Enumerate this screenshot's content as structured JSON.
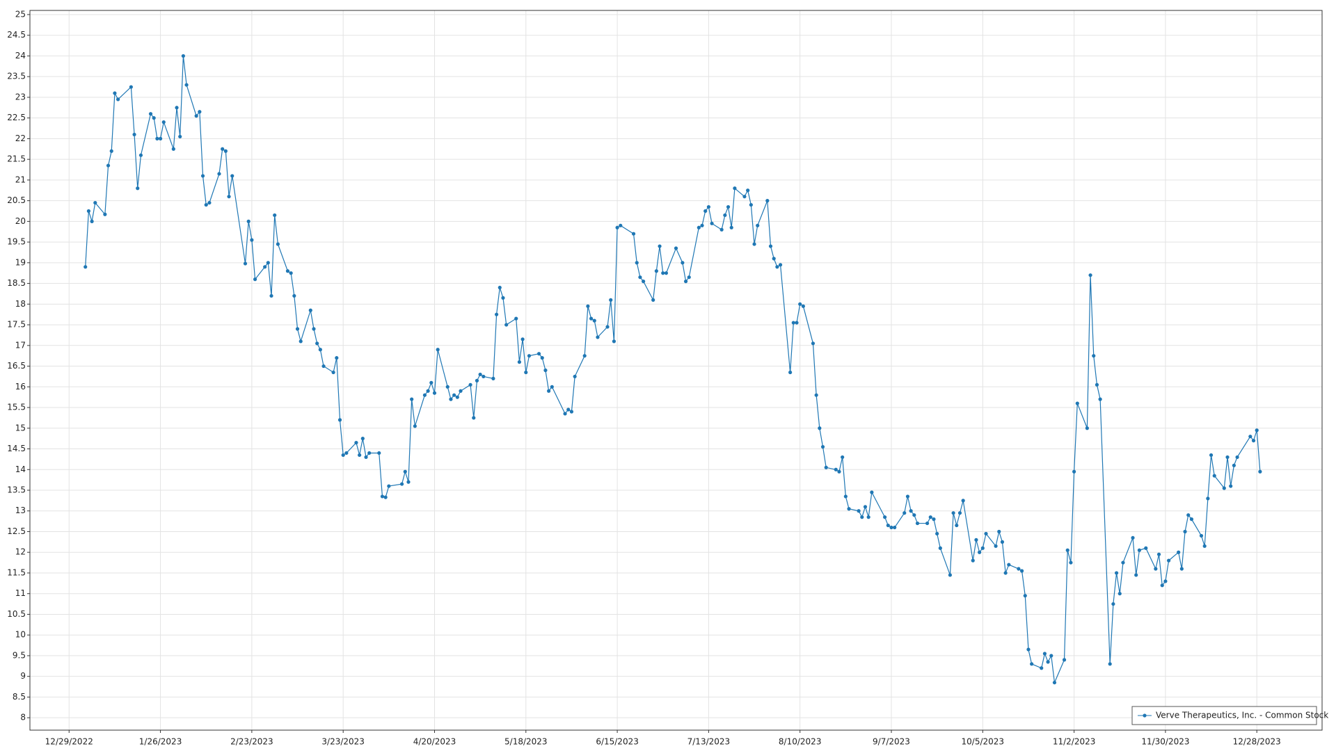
{
  "chart_data": {
    "type": "line",
    "x": [
      "1/3/2023",
      "1/4/2023",
      "1/5/2023",
      "1/6/2023",
      "1/9/2023",
      "1/10/2023",
      "1/11/2023",
      "1/12/2023",
      "1/13/2023",
      "1/17/2023",
      "1/18/2023",
      "1/19/2023",
      "1/20/2023",
      "1/23/2023",
      "1/24/2023",
      "1/25/2023",
      "1/26/2023",
      "1/27/2023",
      "1/30/2023",
      "1/31/2023",
      "2/1/2023",
      "2/2/2023",
      "2/3/2023",
      "2/6/2023",
      "2/7/2023",
      "2/8/2023",
      "2/9/2023",
      "2/10/2023",
      "2/13/2023",
      "2/14/2023",
      "2/15/2023",
      "2/16/2023",
      "2/17/2023",
      "2/21/2023",
      "2/22/2023",
      "2/23/2023",
      "2/24/2023",
      "2/27/2023",
      "2/28/2023",
      "3/1/2023",
      "3/2/2023",
      "3/3/2023",
      "3/6/2023",
      "3/7/2023",
      "3/8/2023",
      "3/9/2023",
      "3/10/2023",
      "3/13/2023",
      "3/14/2023",
      "3/15/2023",
      "3/16/2023",
      "3/17/2023",
      "3/20/2023",
      "3/21/2023",
      "3/22/2023",
      "3/23/2023",
      "3/24/2023",
      "3/27/2023",
      "3/28/2023",
      "3/29/2023",
      "3/30/2023",
      "3/31/2023",
      "4/3/2023",
      "4/4/2023",
      "4/5/2023",
      "4/6/2023",
      "4/10/2023",
      "4/11/2023",
      "4/12/2023",
      "4/13/2023",
      "4/14/2023",
      "4/17/2023",
      "4/18/2023",
      "4/19/2023",
      "4/20/2023",
      "4/21/2023",
      "4/24/2023",
      "4/25/2023",
      "4/26/2023",
      "4/27/2023",
      "4/28/2023",
      "5/1/2023",
      "5/2/2023",
      "5/3/2023",
      "5/4/2023",
      "5/5/2023",
      "5/8/2023",
      "5/9/2023",
      "5/10/2023",
      "5/11/2023",
      "5/12/2023",
      "5/15/2023",
      "5/16/2023",
      "5/17/2023",
      "5/18/2023",
      "5/19/2023",
      "5/22/2023",
      "5/23/2023",
      "5/24/2023",
      "5/25/2023",
      "5/26/2023",
      "5/30/2023",
      "5/31/2023",
      "6/1/2023",
      "6/2/2023",
      "6/5/2023",
      "6/6/2023",
      "6/7/2023",
      "6/8/2023",
      "6/9/2023",
      "6/12/2023",
      "6/13/2023",
      "6/14/2023",
      "6/15/2023",
      "6/16/2023",
      "6/20/2023",
      "6/21/2023",
      "6/22/2023",
      "6/23/2023",
      "6/26/2023",
      "6/27/2023",
      "6/28/2023",
      "6/29/2023",
      "6/30/2023",
      "7/3/2023",
      "7/5/2023",
      "7/6/2023",
      "7/7/2023",
      "7/10/2023",
      "7/11/2023",
      "7/12/2023",
      "7/13/2023",
      "7/14/2023",
      "7/17/2023",
      "7/18/2023",
      "7/19/2023",
      "7/20/2023",
      "7/21/2023",
      "7/24/2023",
      "7/25/2023",
      "7/26/2023",
      "7/27/2023",
      "7/28/2023",
      "7/31/2023",
      "8/1/2023",
      "8/2/2023",
      "8/3/2023",
      "8/4/2023",
      "8/7/2023",
      "8/8/2023",
      "8/9/2023",
      "8/10/2023",
      "8/11/2023",
      "8/14/2023",
      "8/15/2023",
      "8/16/2023",
      "8/17/2023",
      "8/18/2023",
      "8/21/2023",
      "8/22/2023",
      "8/23/2023",
      "8/24/2023",
      "8/25/2023",
      "8/28/2023",
      "8/29/2023",
      "8/30/2023",
      "8/31/2023",
      "9/1/2023",
      "9/5/2023",
      "9/6/2023",
      "9/7/2023",
      "9/8/2023",
      "9/11/2023",
      "9/12/2023",
      "9/13/2023",
      "9/14/2023",
      "9/15/2023",
      "9/18/2023",
      "9/19/2023",
      "9/20/2023",
      "9/21/2023",
      "9/22/2023",
      "9/25/2023",
      "9/26/2023",
      "9/27/2023",
      "9/28/2023",
      "9/29/2023",
      "10/2/2023",
      "10/3/2023",
      "10/4/2023",
      "10/5/2023",
      "10/6/2023",
      "10/9/2023",
      "10/10/2023",
      "10/11/2023",
      "10/12/2023",
      "10/13/2023",
      "10/16/2023",
      "10/17/2023",
      "10/18/2023",
      "10/19/2023",
      "10/20/2023",
      "10/23/2023",
      "10/24/2023",
      "10/25/2023",
      "10/26/2023",
      "10/27/2023",
      "10/30/2023",
      "10/31/2023",
      "11/1/2023",
      "11/2/2023",
      "11/3/2023",
      "11/6/2023",
      "11/7/2023",
      "11/8/2023",
      "11/9/2023",
      "11/10/2023",
      "11/13/2023",
      "11/14/2023",
      "11/15/2023",
      "11/16/2023",
      "11/17/2023",
      "11/20/2023",
      "11/21/2023",
      "11/22/2023",
      "11/24/2023",
      "11/27/2023",
      "11/28/2023",
      "11/29/2023",
      "11/30/2023",
      "12/1/2023",
      "12/4/2023",
      "12/5/2023",
      "12/6/2023",
      "12/7/2023",
      "12/8/2023",
      "12/11/2023",
      "12/12/2023",
      "12/13/2023",
      "12/14/2023",
      "12/15/2023",
      "12/18/2023",
      "12/19/2023",
      "12/20/2023",
      "12/21/2023",
      "12/22/2023",
      "12/26/2023",
      "12/27/2023",
      "12/28/2023",
      "12/29/2023"
    ],
    "series": [
      {
        "name": "Verve Therapeutics, Inc. - Common Stock",
        "color": "#1f77b4",
        "values": [
          18.9,
          20.25,
          20.0,
          20.45,
          20.17,
          21.35,
          21.7,
          23.1,
          22.95,
          23.25,
          22.1,
          20.8,
          21.6,
          22.6,
          22.5,
          22.0,
          22.0,
          22.4,
          21.75,
          22.75,
          22.05,
          24.0,
          23.3,
          22.55,
          22.65,
          21.1,
          20.4,
          20.45,
          21.15,
          21.75,
          21.7,
          20.6,
          21.1,
          18.98,
          20.0,
          19.55,
          18.6,
          18.9,
          19.0,
          18.2,
          20.15,
          19.45,
          18.8,
          18.75,
          18.2,
          17.4,
          17.1,
          17.85,
          17.4,
          17.05,
          16.9,
          16.5,
          16.35,
          16.7,
          15.2,
          14.35,
          14.4,
          14.65,
          14.35,
          14.75,
          14.3,
          14.4,
          14.4,
          13.35,
          13.33,
          13.6,
          13.65,
          13.95,
          13.7,
          15.7,
          15.05,
          15.8,
          15.9,
          16.1,
          15.85,
          16.9,
          16.0,
          15.7,
          15.8,
          15.75,
          15.9,
          16.05,
          15.25,
          16.15,
          16.3,
          16.25,
          16.2,
          17.75,
          18.4,
          18.15,
          17.5,
          17.65,
          16.6,
          17.15,
          16.35,
          16.75,
          16.8,
          16.7,
          16.4,
          15.9,
          16.0,
          15.35,
          15.45,
          15.4,
          16.25,
          16.75,
          17.95,
          17.65,
          17.6,
          17.2,
          17.45,
          18.1,
          17.1,
          19.85,
          19.9,
          19.7,
          19.0,
          18.65,
          18.55,
          18.1,
          18.8,
          19.4,
          18.75,
          18.75,
          19.35,
          19.0,
          18.55,
          18.65,
          19.85,
          19.9,
          20.25,
          20.35,
          19.95,
          19.8,
          20.15,
          20.35,
          19.85,
          20.8,
          20.6,
          20.75,
          20.4,
          19.45,
          19.9,
          20.5,
          19.4,
          19.1,
          18.9,
          18.95,
          16.35,
          17.55,
          17.55,
          18.0,
          17.95,
          17.05,
          15.8,
          15.0,
          14.55,
          14.05,
          14.0,
          13.95,
          14.3,
          13.35,
          13.05,
          13.0,
          12.85,
          13.1,
          12.85,
          13.45,
          12.85,
          12.65,
          12.6,
          12.6,
          12.95,
          13.35,
          13.0,
          12.9,
          12.7,
          12.7,
          12.85,
          12.8,
          12.45,
          12.1,
          11.45,
          12.95,
          12.65,
          12.95,
          13.25,
          11.8,
          12.3,
          12.0,
          12.1,
          12.45,
          12.15,
          12.5,
          12.25,
          11.5,
          11.7,
          11.6,
          11.55,
          10.95,
          9.65,
          9.3,
          9.2,
          9.55,
          9.35,
          9.5,
          8.85,
          9.4,
          12.05,
          11.75,
          13.95,
          15.6,
          15.0,
          18.7,
          16.75,
          16.05,
          15.7,
          9.3,
          10.75,
          11.5,
          11.0,
          11.75,
          12.35,
          11.45,
          12.05,
          12.1,
          11.6,
          11.95,
          11.2,
          11.3,
          11.8,
          12.0,
          11.6,
          12.5,
          12.9,
          12.8,
          12.4,
          12.15,
          13.3,
          14.35,
          13.85,
          13.55,
          14.3,
          13.6,
          14.1,
          14.3,
          14.8,
          14.7,
          14.95,
          13.95
        ]
      }
    ],
    "xlim": [
      "12/17/2022",
      "1/17/2024"
    ],
    "xticks": [
      "12/29/2022",
      "1/26/2023",
      "2/23/2023",
      "3/23/2023",
      "4/20/2023",
      "5/18/2023",
      "6/15/2023",
      "7/13/2023",
      "8/10/2023",
      "9/7/2023",
      "10/5/2023",
      "11/2/2023",
      "11/30/2023",
      "12/28/2023"
    ],
    "ylim": [
      7.7,
      25.1
    ],
    "yticks": [
      8,
      8.5,
      9,
      9.5,
      10,
      10.5,
      11,
      11.5,
      12,
      12.5,
      13,
      13.5,
      14,
      14.5,
      15,
      15.5,
      16,
      16.5,
      17,
      17.5,
      18,
      18.5,
      19,
      19.5,
      20,
      20.5,
      21,
      21.5,
      22,
      22.5,
      23,
      23.5,
      24,
      24.5,
      25
    ],
    "grid": true,
    "legend": "bottom-right"
  }
}
